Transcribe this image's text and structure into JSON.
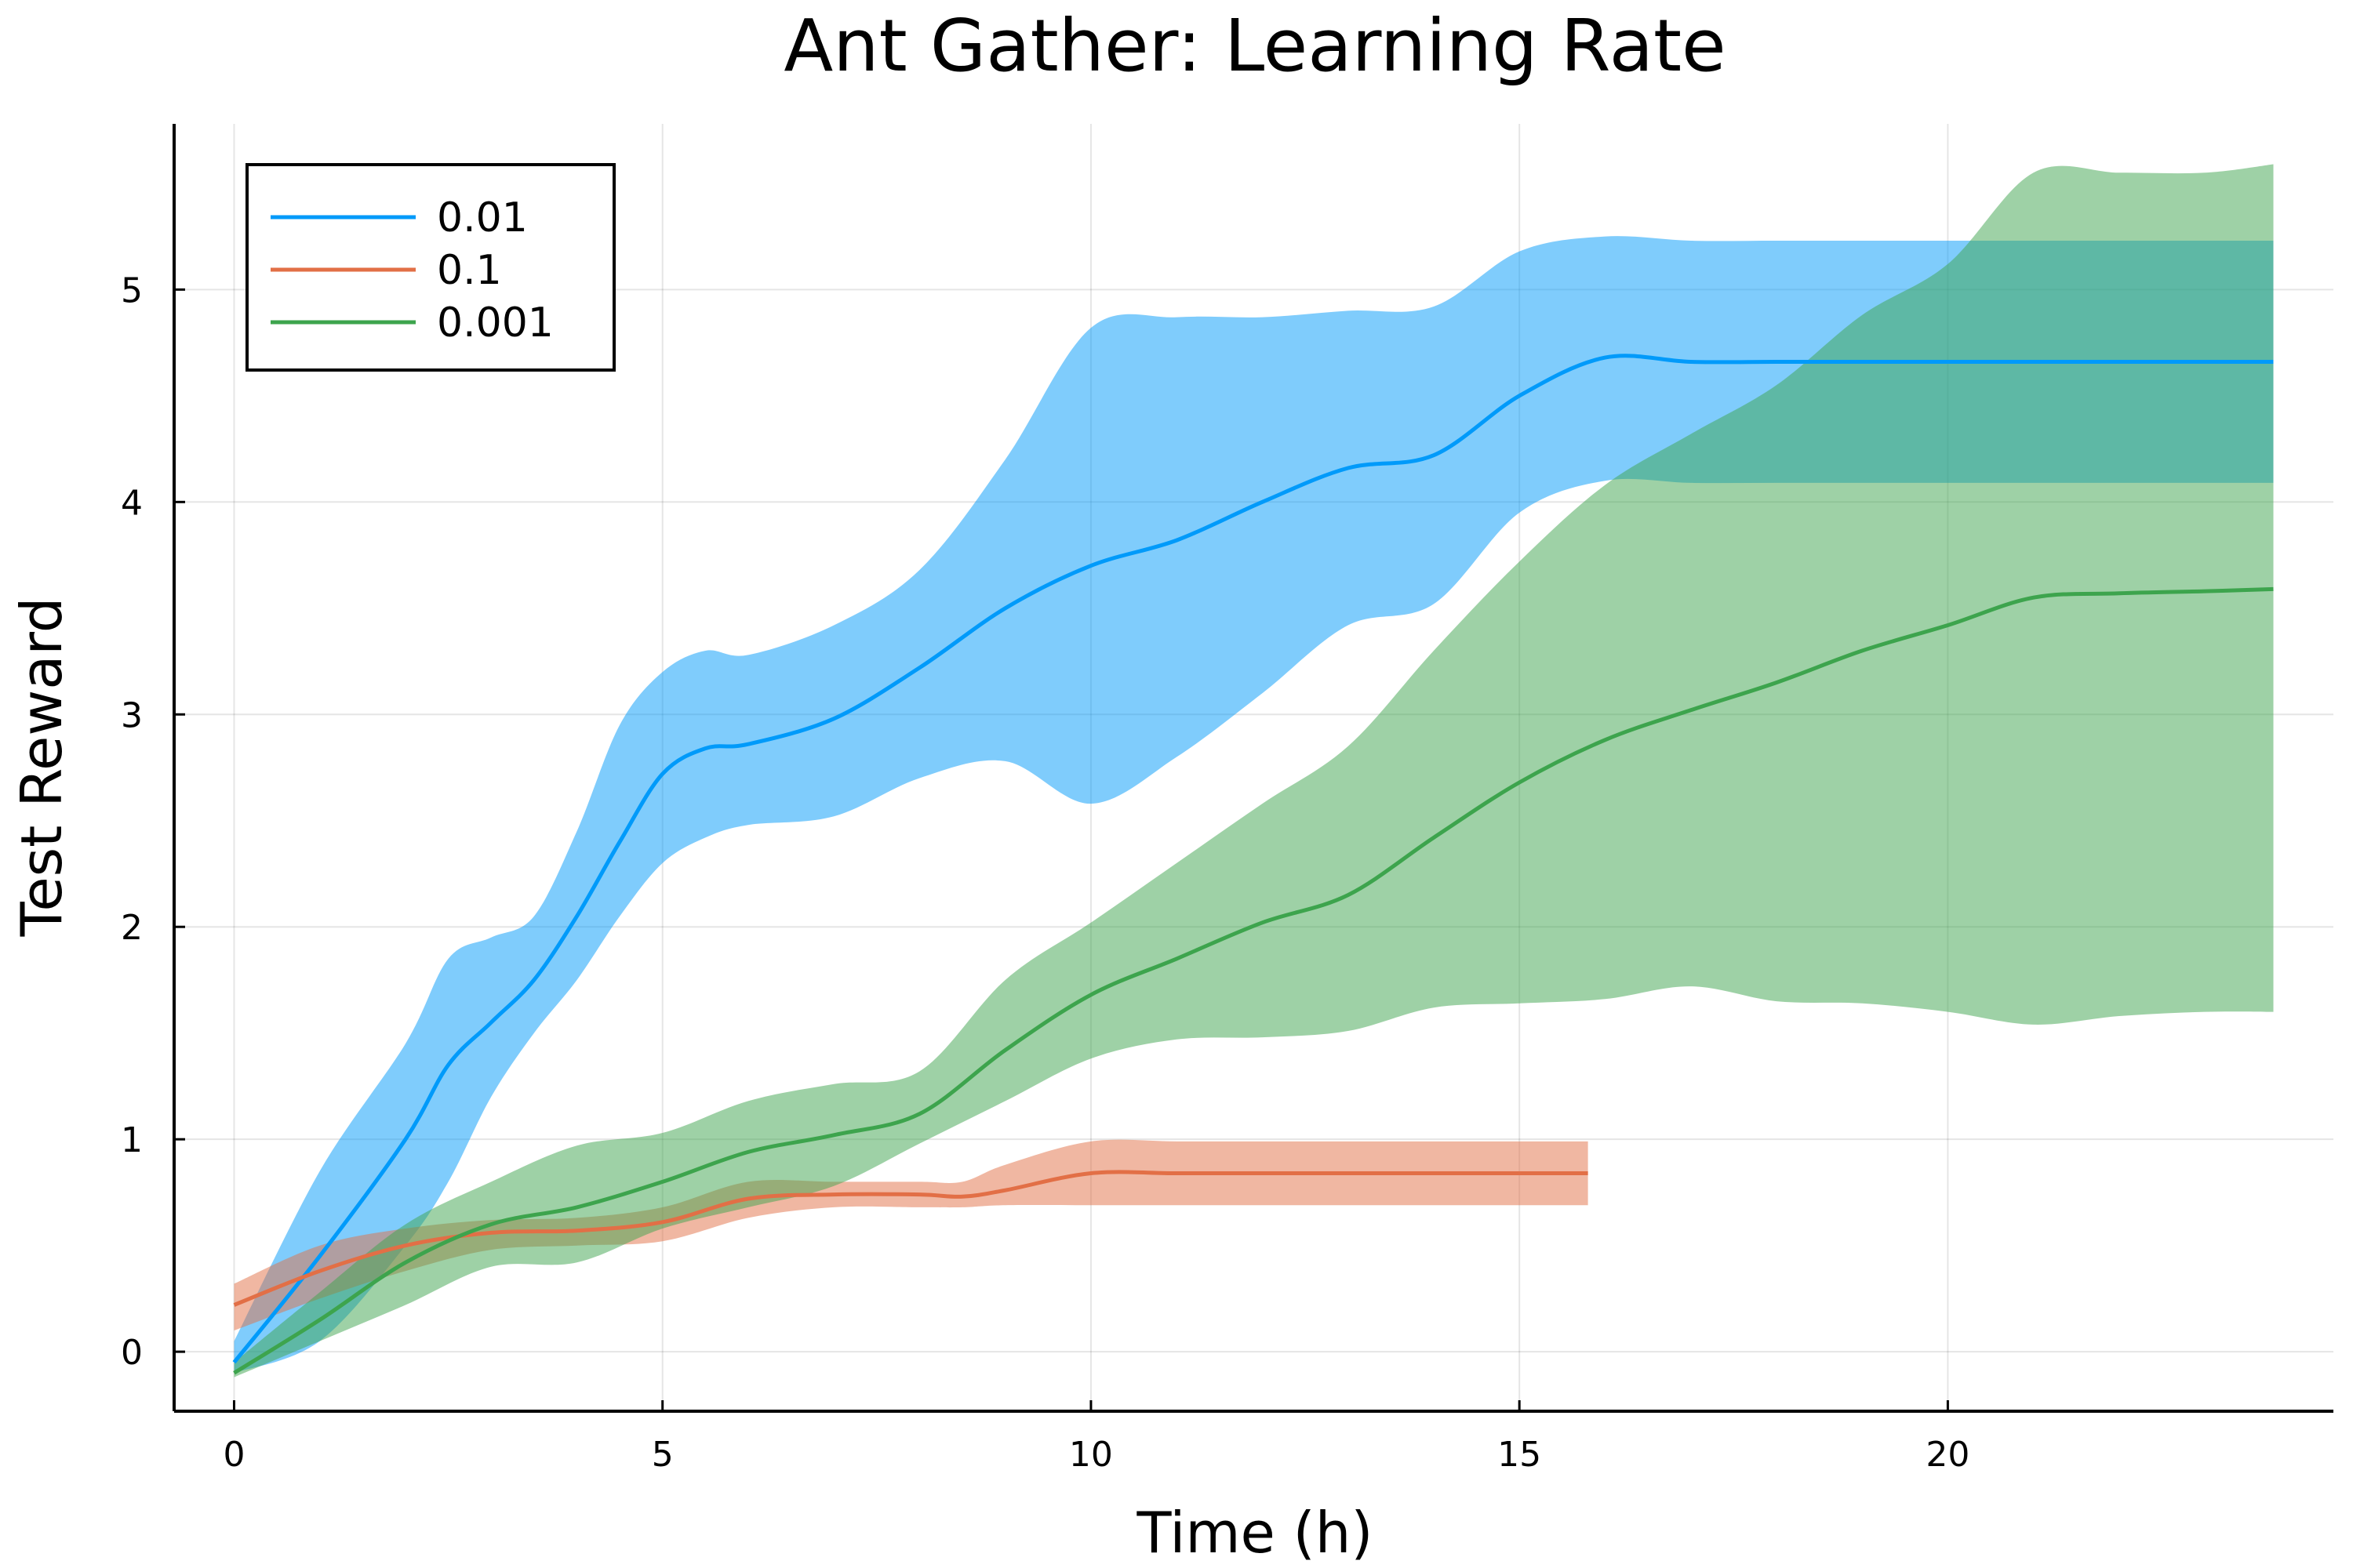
{
  "chart_data": {
    "type": "line",
    "title": "Ant Gather: Learning Rate",
    "xlabel": "Time (h)",
    "ylabel": "Test Reward",
    "xlim": [
      -0.7,
      24.5
    ],
    "ylim": [
      -0.28,
      5.78
    ],
    "xticks": [
      0,
      5,
      10,
      15,
      20
    ],
    "yticks": [
      0,
      1,
      2,
      3,
      4,
      5
    ],
    "grid": true,
    "legend_position": "top-left",
    "series": [
      {
        "name": "0.01",
        "color": "#009AFA",
        "x": [
          0,
          1,
          2,
          2.5,
          3,
          3.5,
          4,
          4.5,
          5,
          5.5,
          6,
          7,
          8,
          9,
          10,
          11,
          12,
          13,
          14,
          15,
          16,
          17,
          18,
          19,
          20,
          21,
          22,
          23,
          23.8
        ],
        "y": [
          -0.05,
          0.45,
          1.0,
          1.35,
          1.55,
          1.75,
          2.05,
          2.4,
          2.72,
          2.84,
          2.86,
          2.98,
          3.22,
          3.5,
          3.7,
          3.82,
          4.0,
          4.16,
          4.22,
          4.5,
          4.68,
          4.66,
          4.66,
          4.66,
          4.66,
          4.66,
          4.66,
          4.66,
          4.66
        ],
        "upper": [
          0.05,
          0.85,
          1.45,
          1.85,
          1.95,
          2.05,
          2.45,
          2.95,
          3.2,
          3.3,
          3.28,
          3.42,
          3.68,
          4.2,
          4.82,
          4.87,
          4.87,
          4.9,
          4.92,
          5.18,
          5.25,
          5.23,
          5.23,
          5.23,
          5.23,
          5.23,
          5.23,
          5.23,
          5.23
        ],
        "lower": [
          -0.1,
          0.05,
          0.5,
          0.8,
          1.2,
          1.5,
          1.75,
          2.05,
          2.3,
          2.42,
          2.48,
          2.52,
          2.7,
          2.78,
          2.58,
          2.8,
          3.1,
          3.42,
          3.52,
          3.95,
          4.1,
          4.09,
          4.09,
          4.09,
          4.09,
          4.09,
          4.09,
          4.09,
          4.09
        ]
      },
      {
        "name": "0.1",
        "color": "#E26F46",
        "x": [
          0,
          1,
          2,
          3,
          4,
          5,
          6,
          7,
          8,
          8.5,
          9,
          10,
          11,
          12,
          13,
          14,
          15,
          15.8
        ],
        "y": [
          0.22,
          0.38,
          0.5,
          0.56,
          0.57,
          0.61,
          0.72,
          0.74,
          0.74,
          0.73,
          0.76,
          0.84,
          0.84,
          0.84,
          0.84,
          0.84,
          0.84,
          0.84
        ],
        "upper": [
          0.32,
          0.5,
          0.58,
          0.62,
          0.63,
          0.68,
          0.8,
          0.8,
          0.8,
          0.8,
          0.88,
          0.99,
          0.99,
          0.99,
          0.99,
          0.99,
          0.99,
          0.99
        ],
        "lower": [
          0.1,
          0.25,
          0.38,
          0.48,
          0.5,
          0.52,
          0.63,
          0.68,
          0.68,
          0.68,
          0.69,
          0.69,
          0.69,
          0.69,
          0.69,
          0.69,
          0.69,
          0.69
        ]
      },
      {
        "name": "0.001",
        "color": "#3DA44D",
        "x": [
          0,
          1,
          2,
          3,
          4,
          5,
          6,
          7,
          8,
          9,
          10,
          11,
          12,
          13,
          14,
          15,
          16,
          17,
          18,
          19,
          20,
          21,
          22,
          23,
          23.8
        ],
        "y": [
          -0.1,
          0.15,
          0.42,
          0.6,
          0.68,
          0.8,
          0.94,
          1.02,
          1.12,
          1.42,
          1.68,
          1.85,
          2.02,
          2.15,
          2.42,
          2.68,
          2.88,
          3.02,
          3.15,
          3.3,
          3.42,
          3.55,
          3.57,
          3.58,
          3.59
        ],
        "upper": [
          -0.05,
          0.28,
          0.6,
          0.8,
          0.97,
          1.03,
          1.18,
          1.26,
          1.32,
          1.75,
          2.02,
          2.3,
          2.58,
          2.85,
          3.3,
          3.72,
          4.08,
          4.32,
          4.55,
          4.88,
          5.12,
          5.55,
          5.55,
          5.55,
          5.59
        ],
        "lower": [
          -0.12,
          0.05,
          0.22,
          0.4,
          0.42,
          0.58,
          0.68,
          0.78,
          0.98,
          1.18,
          1.38,
          1.47,
          1.48,
          1.51,
          1.62,
          1.64,
          1.66,
          1.72,
          1.65,
          1.64,
          1.6,
          1.54,
          1.58,
          1.6,
          1.6
        ]
      }
    ]
  }
}
